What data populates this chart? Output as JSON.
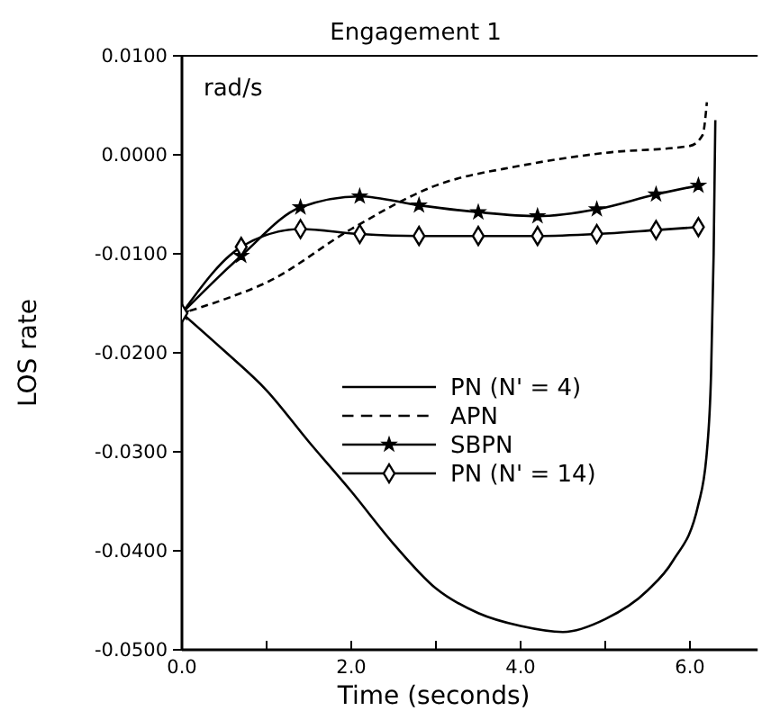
{
  "chart_data": {
    "type": "line",
    "title": "Engagement 1",
    "xlabel": "Time (seconds)",
    "ylabel": "LOS rate",
    "annotations": [
      "rad/s"
    ],
    "xlim": [
      0,
      6.8
    ],
    "ylim": [
      -0.05,
      0.01
    ],
    "xticks": [
      {
        "value": 0,
        "label": "0.0"
      },
      {
        "value": 1,
        "label": null
      },
      {
        "value": 2,
        "label": "2.0"
      },
      {
        "value": 3,
        "label": null
      },
      {
        "value": 4,
        "label": "4.0"
      },
      {
        "value": 5,
        "label": null
      },
      {
        "value": 6,
        "label": "6.0"
      }
    ],
    "yticks": [
      {
        "value": 0.01,
        "label": "0.0100"
      },
      {
        "value": 0,
        "label": "0.0000"
      },
      {
        "value": -0.01,
        "label": "-0.0100"
      },
      {
        "value": -0.02,
        "label": "-0.0200"
      },
      {
        "value": -0.03,
        "label": "-0.0300"
      },
      {
        "value": -0.04,
        "label": "-0.0400"
      },
      {
        "value": -0.05,
        "label": "-0.0500"
      }
    ],
    "grid": false,
    "legend": "center",
    "series": [
      {
        "name": "PN (N' = 4)",
        "color": "#000000",
        "line_style": "solid",
        "marker": "none",
        "x": [
          0,
          0.5,
          1,
          1.5,
          2,
          2.5,
          3,
          3.5,
          4,
          4.5,
          5,
          5.5,
          5.8,
          6.1,
          6.2,
          6.25,
          6.28,
          6.3
        ],
        "values": [
          -0.016,
          -0.0198,
          -0.0238,
          -0.029,
          -0.034,
          -0.0393,
          -0.0438,
          -0.0463,
          -0.0476,
          -0.0482,
          -0.0469,
          -0.044,
          -0.041,
          -0.0353,
          -0.03,
          -0.022,
          -0.01,
          0.0035
        ]
      },
      {
        "name": "APN",
        "color": "#000000",
        "line_style": "dashed",
        "marker": "none",
        "x": [
          0,
          0.5,
          1,
          2,
          3,
          4,
          5,
          6,
          6.15,
          6.2
        ],
        "values": [
          -0.016,
          -0.0146,
          -0.0129,
          -0.0075,
          -0.0031,
          -0.0011,
          0.0002,
          0.0009,
          0.002,
          0.0053
        ]
      },
      {
        "name": "SBPN",
        "color": "#000000",
        "line_style": "solid",
        "marker": "star",
        "x": [
          0,
          0.7,
          1.4,
          2.1,
          2.8,
          3.5,
          4.2,
          4.9,
          5.6,
          6.1
        ],
        "values": [
          -0.016,
          -0.0102,
          -0.0053,
          -0.0042,
          -0.0051,
          -0.0058,
          -0.0062,
          -0.0055,
          -0.004,
          -0.0031
        ]
      },
      {
        "name": "PN (N' = 14)",
        "color": "#000000",
        "line_style": "solid",
        "marker": "diamond",
        "x": [
          0,
          0.7,
          1.4,
          2.1,
          2.8,
          3.5,
          4.2,
          4.9,
          5.6,
          6.1
        ],
        "values": [
          -0.016,
          -0.0093,
          -0.0075,
          -0.008,
          -0.0082,
          -0.0082,
          -0.0082,
          -0.008,
          -0.0076,
          -0.0073
        ]
      }
    ]
  }
}
